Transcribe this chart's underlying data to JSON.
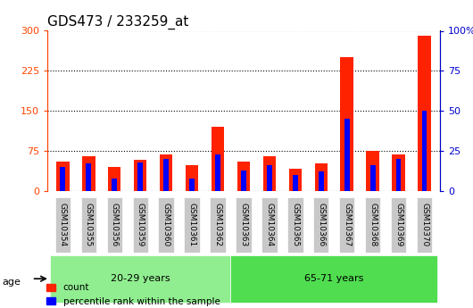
{
  "title": "GDS473 / 233259_at",
  "samples": [
    "GSM10354",
    "GSM10355",
    "GSM10356",
    "GSM10359",
    "GSM10360",
    "GSM10361",
    "GSM10362",
    "GSM10363",
    "GSM10364",
    "GSM10365",
    "GSM10366",
    "GSM10367",
    "GSM10368",
    "GSM10369",
    "GSM10370"
  ],
  "counts": [
    55,
    65,
    45,
    58,
    68,
    48,
    120,
    55,
    65,
    42,
    52,
    250,
    75,
    68,
    290
  ],
  "percentiles": [
    15,
    17,
    8,
    18,
    20,
    8,
    23,
    13,
    16,
    10,
    12,
    45,
    16,
    20,
    50
  ],
  "group1_label": "20-29 years",
  "group1_count": 7,
  "group2_label": "65-71 years",
  "group2_count": 8,
  "age_label": "age",
  "left_ylim": [
    0,
    300
  ],
  "right_ylim": [
    0,
    100
  ],
  "left_yticks": [
    0,
    75,
    150,
    225,
    300
  ],
  "right_yticks": [
    0,
    25,
    50,
    75,
    100
  ],
  "right_yticklabels": [
    "0",
    "25",
    "50",
    "75",
    "100%"
  ],
  "left_color": "#FF4500",
  "right_color": "#0000CC",
  "bar_red": "#FF2200",
  "bar_blue": "#0000FF",
  "bg_plot": "#FFFFFF",
  "bg_xticklabel": "#C8C8C8",
  "group1_bg": "#90EE90",
  "group2_bg": "#50DD50",
  "legend_count_color": "#FF2200",
  "legend_pct_color": "#0000FF",
  "bar_width": 0.5,
  "title_fontsize": 11,
  "tick_fontsize": 8,
  "label_fontsize": 8
}
